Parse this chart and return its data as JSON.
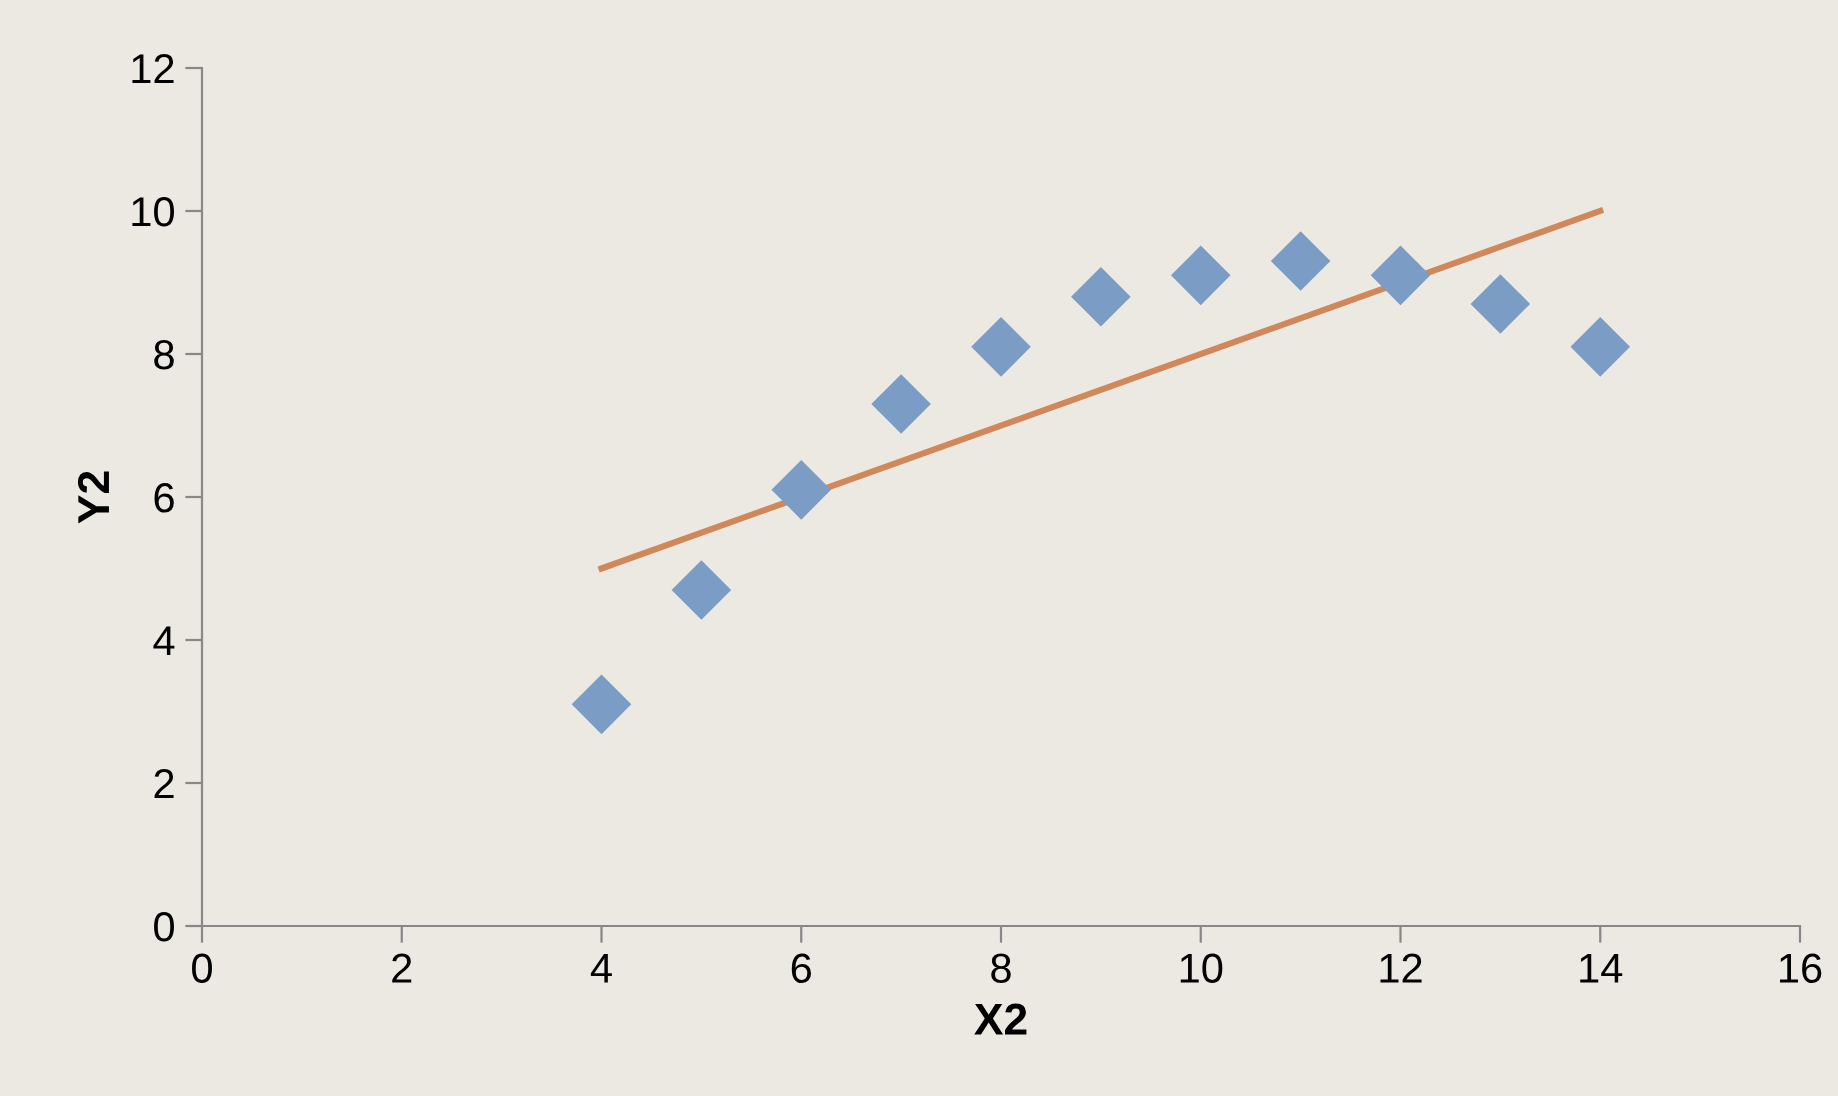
{
  "chart_data": {
    "type": "scatter",
    "xlabel": "X2",
    "ylabel": "Y2",
    "xlim": [
      0,
      16
    ],
    "xticks": [
      0,
      2,
      4,
      6,
      8,
      10,
      12,
      14,
      16
    ],
    "ylim": [
      0,
      12
    ],
    "yticks": [
      0,
      2,
      4,
      6,
      8,
      10,
      12
    ],
    "grid": false,
    "legend": false,
    "marker": "diamond",
    "x": [
      4,
      5,
      6,
      7,
      8,
      9,
      10,
      11,
      12,
      13,
      14
    ],
    "series": [
      {
        "color": "#7b9cc4",
        "values": [
          3.1,
          4.7,
          6.1,
          7.3,
          8.1,
          8.8,
          9.1,
          9.3,
          9.1,
          8.7,
          8.1
        ]
      },
      {
        "type": "line",
        "color": "#d0875a",
        "marker": "none",
        "line_style": "solid",
        "x": [
          4,
          14
        ],
        "values": [
          5,
          10
        ]
      }
    ]
  }
}
